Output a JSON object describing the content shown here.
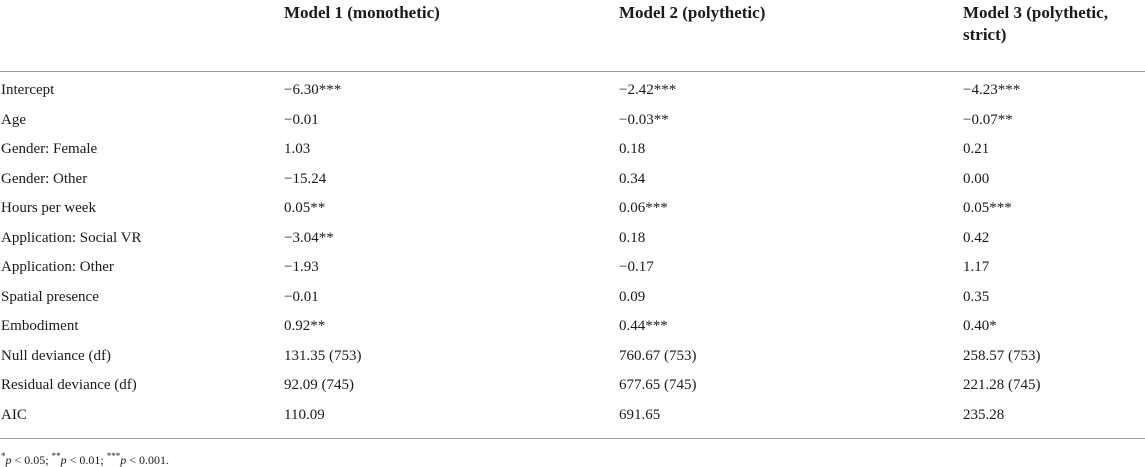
{
  "table": {
    "headers": [
      "",
      "Model 1 (monothetic)",
      "Model 2 (polythetic)",
      "Model 3 (polythetic, strict)"
    ],
    "rows": [
      [
        "Intercept",
        "−6.30***",
        "−2.42***",
        "−4.23***"
      ],
      [
        "Age",
        "−0.01",
        "−0.03**",
        "−0.07**"
      ],
      [
        "Gender: Female",
        "1.03",
        "0.18",
        "0.21"
      ],
      [
        "Gender: Other",
        "−15.24",
        "0.34",
        "0.00"
      ],
      [
        "Hours per week",
        "0.05**",
        "0.06***",
        "0.05***"
      ],
      [
        "Application: Social VR",
        "−3.04**",
        "0.18",
        "0.42"
      ],
      [
        "Application: Other",
        "−1.93",
        "−0.17",
        "1.17"
      ],
      [
        "Spatial presence",
        "−0.01",
        "0.09",
        "0.35"
      ],
      [
        "Embodiment",
        "0.92**",
        "0.44***",
        "0.40*"
      ],
      [
        "Null deviance (df)",
        "131.35 (753)",
        "760.67 (753)",
        "258.57 (753)"
      ],
      [
        "Residual deviance (df)",
        "92.09 (745)",
        "677.65 (745)",
        "221.28 (745)"
      ],
      [
        "AIC",
        "110.09",
        "691.65",
        "235.28"
      ]
    ]
  },
  "footnote": {
    "parts": [
      {
        "sup": "*",
        "p": "p",
        "text": " < 0.05; "
      },
      {
        "sup": "**",
        "p": "p",
        "text": " < 0.01; "
      },
      {
        "sup": "***",
        "p": "p",
        "text": " < 0.001."
      }
    ]
  }
}
